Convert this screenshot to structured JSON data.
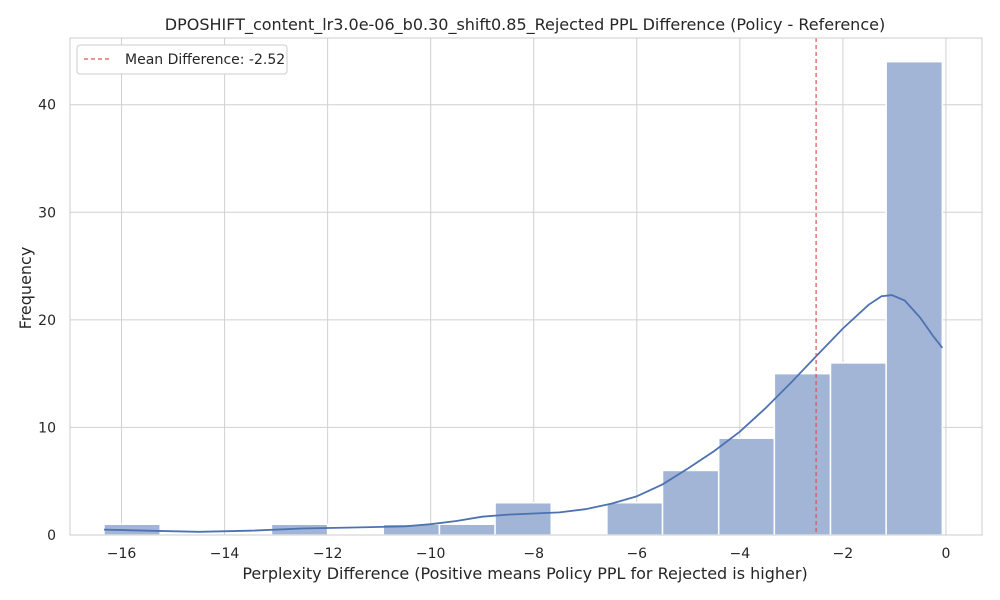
{
  "chart_data": {
    "type": "bar",
    "title": "DPOSHIFT_content_lr3.0e-06_b0.30_shift0.85_Rejected PPL Difference (Policy - Reference)",
    "xlabel": "Perplexity Difference (Positive means Policy PPL for Rejected is higher)",
    "ylabel": "Frequency",
    "xlim": [
      -17.0,
      0.7
    ],
    "ylim": [
      0,
      46.2
    ],
    "xticks": [
      -16,
      -14,
      -12,
      -10,
      -8,
      -6,
      -4,
      -2,
      0
    ],
    "xtick_labels": [
      "−16",
      "−14",
      "−12",
      "−10",
      "−8",
      "−6",
      "−4",
      "−2",
      "0"
    ],
    "yticks": [
      0,
      10,
      20,
      30,
      40
    ],
    "ytick_labels": [
      "0",
      "10",
      "20",
      "30",
      "40"
    ],
    "grid": true,
    "bins": [
      {
        "x0": -16.34,
        "x1": -15.25,
        "count": 1
      },
      {
        "x0": -15.25,
        "x1": -14.17,
        "count": 0
      },
      {
        "x0": -14.17,
        "x1": -13.09,
        "count": 0
      },
      {
        "x0": -13.09,
        "x1": -12.0,
        "count": 1
      },
      {
        "x0": -12.0,
        "x1": -10.92,
        "count": 0
      },
      {
        "x0": -10.92,
        "x1": -9.83,
        "count": 1
      },
      {
        "x0": -9.83,
        "x1": -8.75,
        "count": 1
      },
      {
        "x0": -8.75,
        "x1": -7.66,
        "count": 3
      },
      {
        "x0": -7.66,
        "x1": -6.58,
        "count": 0
      },
      {
        "x0": -6.58,
        "x1": -5.5,
        "count": 3
      },
      {
        "x0": -5.5,
        "x1": -4.41,
        "count": 6
      },
      {
        "x0": -4.41,
        "x1": -3.33,
        "count": 9
      },
      {
        "x0": -3.33,
        "x1": -2.24,
        "count": 15
      },
      {
        "x0": -2.24,
        "x1": -1.16,
        "count": 16
      },
      {
        "x0": -1.16,
        "x1": -0.07,
        "count": 44
      }
    ],
    "kde": [
      [
        -16.34,
        0.5
      ],
      [
        -15.5,
        0.4
      ],
      [
        -14.5,
        0.3
      ],
      [
        -13.5,
        0.4
      ],
      [
        -12.5,
        0.6
      ],
      [
        -11.5,
        0.7
      ],
      [
        -10.5,
        0.8
      ],
      [
        -10.0,
        1.0
      ],
      [
        -9.5,
        1.3
      ],
      [
        -9.0,
        1.7
      ],
      [
        -8.5,
        1.9
      ],
      [
        -8.0,
        2.0
      ],
      [
        -7.5,
        2.1
      ],
      [
        -7.0,
        2.4
      ],
      [
        -6.5,
        2.9
      ],
      [
        -6.0,
        3.6
      ],
      [
        -5.5,
        4.7
      ],
      [
        -5.0,
        6.2
      ],
      [
        -4.5,
        7.8
      ],
      [
        -4.0,
        9.6
      ],
      [
        -3.5,
        11.8
      ],
      [
        -3.0,
        14.2
      ],
      [
        -2.5,
        16.7
      ],
      [
        -2.0,
        19.2
      ],
      [
        -1.5,
        21.4
      ],
      [
        -1.25,
        22.2
      ],
      [
        -1.05,
        22.3
      ],
      [
        -0.8,
        21.8
      ],
      [
        -0.5,
        20.2
      ],
      [
        -0.25,
        18.5
      ],
      [
        -0.07,
        17.4
      ]
    ],
    "mean_line": {
      "x": -2.52,
      "label": "Mean Difference: -2.52",
      "color": "#d9534f"
    },
    "legend_position": "top-left",
    "colors": {
      "bar_fill": "#a3b5d6",
      "bar_edge": "#ffffff",
      "kde": "#4c72b0",
      "grid": "#d0d0d0",
      "frame": "#cccccc"
    }
  }
}
